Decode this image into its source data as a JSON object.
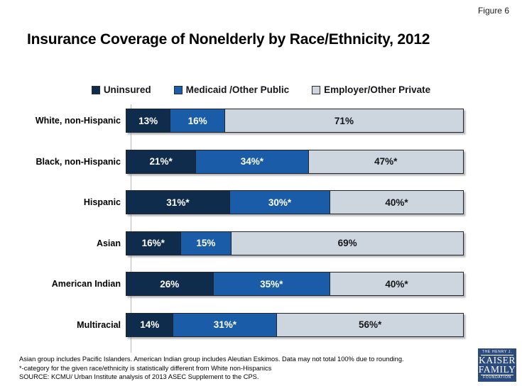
{
  "figure_label": "Figure 6",
  "title": "Insurance Coverage of Nonelderly by Race/Ethnicity, 2012",
  "chart_data": {
    "type": "bar",
    "orientation": "horizontal-stacked",
    "title": "Insurance Coverage of Nonelderly by Race/Ethnicity, 2012",
    "xlim": [
      0,
      100
    ],
    "legend_position": "top",
    "grid": false,
    "categories": [
      "White, non-Hispanic",
      "Black, non-Hispanic",
      "Hispanic",
      "Asian",
      "American Indian",
      "Multiracial"
    ],
    "series": [
      {
        "name": "Uninsured",
        "color": "#102C4C",
        "text_color": "#ffffff",
        "values": [
          13,
          21,
          31,
          16,
          26,
          14
        ],
        "labels": [
          "13%",
          "21%*",
          "31%*",
          "16%*",
          "26%",
          "14%"
        ]
      },
      {
        "name": "Medicaid /Other Public",
        "color": "#1B5CA8",
        "text_color": "#ffffff",
        "values": [
          16,
          34,
          30,
          15,
          35,
          31
        ],
        "labels": [
          "16%",
          "34%*",
          "30%*",
          "15%",
          "35%*",
          "31%*"
        ]
      },
      {
        "name": "Employer/Other Private",
        "color": "#CDD5DF",
        "text_color": "#14161a",
        "values": [
          71,
          47,
          40,
          69,
          40,
          56
        ],
        "labels": [
          "71%",
          "47%*",
          "40%*",
          "69%",
          "40%*",
          "56%*"
        ]
      }
    ]
  },
  "footnotes": [
    "Asian group includes Pacific Islanders. American Indian group includes Aleutian Eskimos. Data may not total 100% due to rounding.",
    "*-category for the given race/ethnicity is statistically different from White non-Hispanics",
    "SOURCE: KCMU/ Urban Institute analysis of 2013 ASEC Supplement to the CPS."
  ],
  "logo": {
    "top": "THE HENRY J.",
    "kaiser": "KAISER",
    "family": "FAMILY",
    "foundation": "FOUNDATION"
  }
}
